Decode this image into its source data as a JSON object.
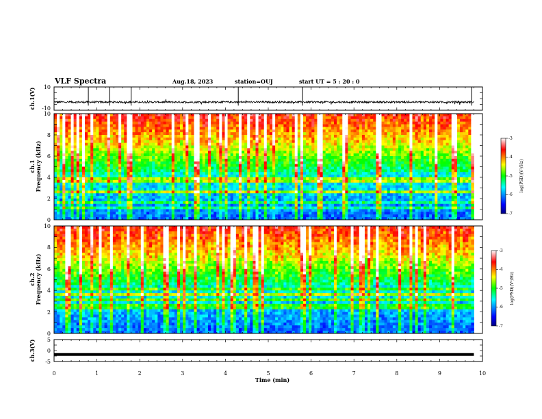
{
  "header": {
    "title": "VLF Spectra",
    "date": "Aug.18, 2023",
    "station": "station=OUJ",
    "start": "start  UT =  5 : 20 : 0"
  },
  "chart_data": [
    {
      "type": "line",
      "ylabel": "ch.1(V)",
      "ylim": [
        -10,
        10
      ],
      "ytick_labels": [
        "10",
        "-10"
      ],
      "xlim": [
        0,
        10
      ],
      "data_extent_min": 9.8,
      "baseline": -3,
      "noise_amplitude": 0.8,
      "spike_times": [
        0.8,
        1.3,
        1.8,
        4.3,
        5.8,
        9.75
      ]
    },
    {
      "type": "heatmap",
      "ylabel_line1": "ch.1",
      "ylabel_line2": "Frequency (kHz)",
      "ylim": [
        0,
        10
      ],
      "ytick_labels": [
        "0",
        "2",
        "4",
        "6",
        "8",
        "10"
      ],
      "xlim": [
        0,
        10
      ],
      "data_extent_min": 9.8,
      "colorbar": {
        "label": "log(PSD)(V²/Hz)",
        "range": [
          -7,
          -3
        ],
        "tick_labels": [
          "-3",
          "-4",
          "-5",
          "-6",
          "-7"
        ]
      }
    },
    {
      "type": "heatmap",
      "ylabel_line1": "ch.2",
      "ylabel_line2": "Frequency (kHz)",
      "ylim": [
        0,
        10
      ],
      "ytick_labels": [
        "0",
        "2",
        "4",
        "6",
        "8",
        "10"
      ],
      "xlim": [
        0,
        10
      ],
      "data_extent_min": 9.8,
      "colorbar": {
        "label": "log(PSD)(V²/Hz)",
        "range": [
          -7,
          -3
        ],
        "tick_labels": [
          "-3",
          "-4",
          "-5",
          "-6",
          "-7"
        ]
      }
    },
    {
      "type": "line",
      "ylabel": "ch.3(V)",
      "ylim": [
        -5,
        5
      ],
      "ytick_labels": [
        "5",
        "0",
        "-5"
      ],
      "xlim": [
        0,
        10
      ],
      "data_extent_min": 9.8,
      "baseline": -1.8,
      "xlabel": "Time (min)",
      "xtick_labels": [
        "0",
        "1",
        "2",
        "3",
        "4",
        "5",
        "6",
        "7",
        "8",
        "9",
        "10"
      ]
    }
  ]
}
